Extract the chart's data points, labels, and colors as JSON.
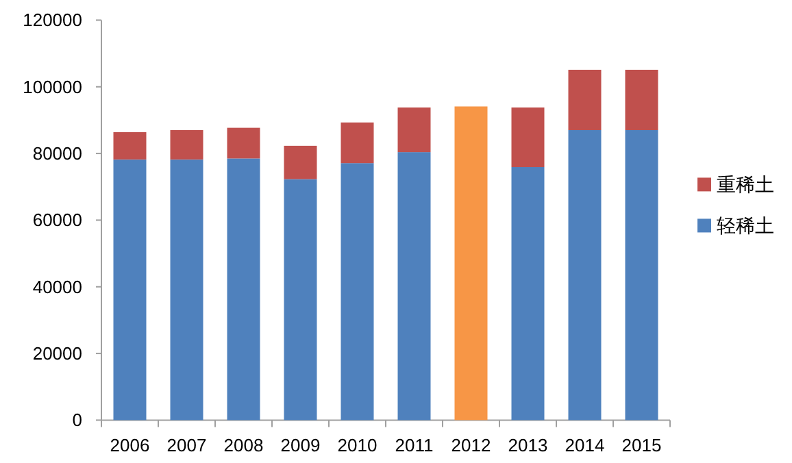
{
  "chart_data": {
    "type": "bar",
    "stacked": true,
    "legend": "right",
    "categories": [
      "2006",
      "2007",
      "2008",
      "2009",
      "2010",
      "2011",
      "2012",
      "2013",
      "2014",
      "2015"
    ],
    "series": [
      {
        "name": "轻稀土",
        "color": "#4f81bd",
        "colors": [
          "#4f81bd",
          "#4f81bd",
          "#4f81bd",
          "#4f81bd",
          "#4f81bd",
          "#4f81bd",
          "#f79646",
          "#4f81bd",
          "#4f81bd",
          "#4f81bd"
        ],
        "values": [
          78200,
          78200,
          78500,
          72300,
          77100,
          80400,
          94100,
          75900,
          87000,
          87000
        ]
      },
      {
        "name": "重稀土",
        "color": "#c0504d",
        "values": [
          8200,
          8800,
          9200,
          10000,
          12200,
          13400,
          null,
          17900,
          18100,
          18100
        ]
      }
    ],
    "ylim": [
      0,
      120000
    ],
    "yticks": [
      0,
      20000,
      40000,
      60000,
      80000,
      100000,
      120000
    ]
  }
}
